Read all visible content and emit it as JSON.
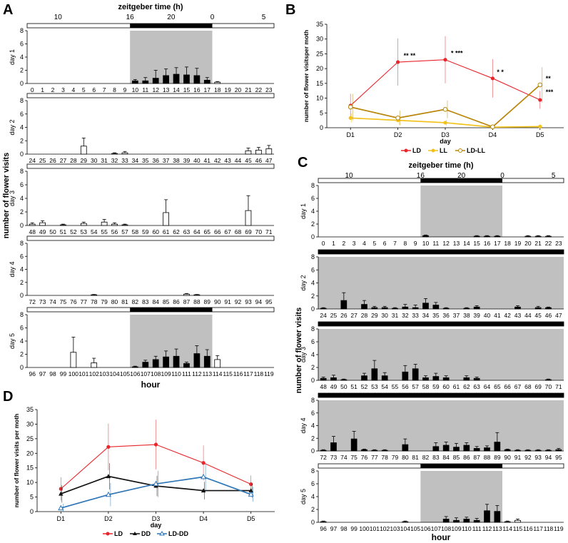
{
  "panels": {
    "A": "A",
    "B": "B",
    "C": "C",
    "D": "D"
  },
  "colors": {
    "LD": "#e8262b",
    "LL": "#f2c21b",
    "LDLL": "#b8860b",
    "DD": "#111111",
    "LDDD": "#2e75b6",
    "dark": "#c0c0c0",
    "bar": "#000000"
  },
  "chart_data": [
    {
      "panel": "A",
      "type": "bar",
      "title": "zeitgeber time (h)",
      "zeitgeber_ticks": [
        "10",
        "16",
        "20",
        "0",
        "5"
      ],
      "xlabel": "hour",
      "ylabel": "number of flower visits",
      "ylim": [
        0,
        8
      ],
      "yticks": [
        "0",
        "2",
        "4",
        "6",
        "8"
      ],
      "days": [
        {
          "label": "day 1",
          "hours": [
            "0",
            "1",
            "2",
            "3",
            "4",
            "5",
            "6",
            "7",
            "8",
            "9",
            "10",
            "11",
            "12",
            "13",
            "14",
            "15",
            "16",
            "17",
            "18",
            "19",
            "20",
            "21",
            "22",
            "23"
          ],
          "values": [
            0,
            0,
            0,
            0,
            0,
            0,
            0,
            0,
            0,
            0,
            0.4,
            0.4,
            0.8,
            1.2,
            1.4,
            1.3,
            1.2,
            0.5,
            0.2,
            0,
            0,
            0,
            0,
            0
          ],
          "errors": [
            0,
            0,
            0,
            0,
            0,
            0,
            0,
            0,
            0,
            0,
            0.2,
            0.5,
            1.2,
            1.0,
            1.0,
            1.2,
            1.1,
            0.4,
            0.1,
            0,
            0,
            0,
            0,
            0
          ],
          "dark_from": 10,
          "dark_to": 18,
          "dark_bar": "top"
        },
        {
          "label": "day 2",
          "hours": [
            "24",
            "25",
            "26",
            "27",
            "28",
            "29",
            "30",
            "31",
            "32",
            "33",
            "34",
            "35",
            "36",
            "37",
            "38",
            "39",
            "40",
            "41",
            "42",
            "43",
            "44",
            "45",
            "46",
            "47"
          ],
          "values": [
            0,
            0,
            0,
            0,
            0,
            1.2,
            0,
            0,
            0.1,
            0.2,
            0,
            0,
            0,
            0,
            0,
            0,
            0,
            0,
            0,
            0,
            0,
            0.5,
            0.6,
            0.8
          ],
          "errors": [
            0,
            0,
            0,
            0,
            0,
            1.2,
            0,
            0,
            0.1,
            0.2,
            0,
            0,
            0,
            0,
            0,
            0,
            0,
            0,
            0,
            0,
            0,
            0.4,
            0.4,
            0.5
          ],
          "dark_from": null,
          "dark_to": null,
          "dark_bar": "none"
        },
        {
          "label": "day 3",
          "hours": [
            "48",
            "49",
            "50",
            "51",
            "52",
            "53",
            "54",
            "55",
            "56",
            "57",
            "58",
            "59",
            "60",
            "61",
            "62",
            "63",
            "64",
            "65",
            "66",
            "67",
            "68",
            "69",
            "70",
            "71"
          ],
          "values": [
            0.2,
            0.4,
            0,
            0.1,
            0,
            0.3,
            0,
            0.5,
            0.2,
            0.1,
            0,
            0,
            0,
            1.9,
            0,
            0,
            0,
            0,
            0,
            0,
            0,
            2.2,
            0,
            0
          ],
          "errors": [
            0.2,
            0.3,
            0,
            0.1,
            0,
            0.2,
            0,
            0.4,
            0.2,
            0.1,
            0,
            0,
            0,
            1.9,
            0,
            0,
            0,
            0,
            0,
            0,
            0,
            2.2,
            0,
            0
          ],
          "dark_from": null,
          "dark_to": null,
          "dark_bar": "none"
        },
        {
          "label": "day 4",
          "hours": [
            "72",
            "73",
            "74",
            "75",
            "76",
            "77",
            "78",
            "79",
            "80",
            "81",
            "82",
            "83",
            "84",
            "85",
            "86",
            "87",
            "88",
            "89",
            "90",
            "91",
            "92",
            "93",
            "94",
            "95"
          ],
          "values": [
            0,
            0,
            0,
            0,
            0,
            0,
            0.1,
            0,
            0,
            0,
            0,
            0,
            0,
            0,
            0,
            0.2,
            0.1,
            0,
            0,
            0,
            0,
            0,
            0,
            0
          ],
          "errors": [
            0,
            0,
            0,
            0,
            0,
            0,
            0.05,
            0,
            0,
            0,
            0,
            0,
            0,
            0,
            0,
            0.1,
            0.05,
            0,
            0,
            0,
            0,
            0,
            0,
            0
          ],
          "dark_from": null,
          "dark_to": null,
          "dark_bar": "none"
        },
        {
          "label": "day 5",
          "hours": [
            "96",
            "97",
            "98",
            "99",
            "100",
            "101",
            "102",
            "103",
            "104",
            "105",
            "106",
            "107",
            "108",
            "109",
            "110",
            "111",
            "112",
            "113",
            "114",
            "115",
            "116",
            "117",
            "118",
            "119"
          ],
          "values": [
            0,
            0,
            0,
            0,
            2.3,
            0,
            0.7,
            0,
            0,
            0,
            0.1,
            0.8,
            1.2,
            1.6,
            1.7,
            0.6,
            2.1,
            1.7,
            1.2,
            0,
            0,
            0,
            0,
            0
          ],
          "errors": [
            0,
            0,
            0,
            0,
            2.3,
            0,
            0.7,
            0,
            0,
            0,
            0.1,
            0.3,
            0.5,
            0.9,
            1.1,
            0.2,
            1.2,
            1.0,
            0.6,
            0,
            0,
            0,
            0,
            0
          ],
          "dark_from": 10,
          "dark_to": 18,
          "dark_bar": "top"
        }
      ]
    },
    {
      "panel": "B",
      "type": "line",
      "categories": [
        "D1",
        "D2",
        "D3",
        "D4",
        "D5"
      ],
      "xlabel": "day",
      "ylabel": "number of flower visitsper moth",
      "ylim": [
        0,
        35
      ],
      "yticks": [
        "0",
        "5",
        "10",
        "15",
        "20",
        "25",
        "30",
        "35"
      ],
      "series": [
        {
          "name": "LD",
          "values": [
            7.5,
            22.2,
            23.0,
            16.7,
            9.4
          ],
          "errors": [
            4.0,
            8.0,
            8.0,
            6.5,
            3.0
          ],
          "marker": "circle"
        },
        {
          "name": "LL",
          "values": [
            3.3,
            2.5,
            1.7,
            0.2,
            0.4
          ],
          "errors": [
            1.5,
            1.5,
            1.0,
            0.3,
            0.5
          ],
          "marker": "circle"
        },
        {
          "name": "LD-LL",
          "values": [
            7.0,
            3.3,
            6.2,
            0.3,
            14.5
          ],
          "errors": [
            4.5,
            2.5,
            3.0,
            0.5,
            6.0
          ],
          "marker": "circle-open"
        }
      ],
      "annotations": [
        {
          "x": "D2",
          "y": 22.2,
          "text": "** **"
        },
        {
          "x": "D3",
          "y": 23.0,
          "text": "* ***"
        },
        {
          "x": "D4",
          "y": 16.7,
          "text": "* *"
        },
        {
          "x": "D5",
          "y": 14.5,
          "text": "**"
        },
        {
          "x": "D5",
          "y": 9.4,
          "text": "***"
        }
      ],
      "legend": [
        "LD",
        "LL",
        "LD-LL"
      ]
    },
    {
      "panel": "C",
      "type": "bar",
      "title": "zeitgeber time (h)",
      "zeitgeber_ticks": [
        "10",
        "16",
        "20",
        "0",
        "5"
      ],
      "xlabel": "hour",
      "ylabel": "number of flower visits",
      "ylim": [
        0,
        8
      ],
      "yticks": [
        "0",
        "2",
        "4",
        "6",
        "8"
      ],
      "days": [
        {
          "label": "day 1",
          "hours": [
            "0",
            "1",
            "2",
            "3",
            "4",
            "5",
            "6",
            "7",
            "8",
            "9",
            "10",
            "11",
            "12",
            "13",
            "14",
            "15",
            "16",
            "17",
            "18",
            "19",
            "20",
            "21",
            "22",
            "23"
          ],
          "values": [
            0,
            0,
            0,
            0,
            0,
            0,
            0,
            0,
            0,
            0,
            0.2,
            0,
            0,
            0,
            0,
            0.1,
            0.1,
            0.1,
            0,
            0,
            0.1,
            0.1,
            0.1,
            0
          ],
          "errors": [
            0,
            0,
            0,
            0,
            0,
            0,
            0,
            0,
            0,
            0,
            0.1,
            0,
            0,
            0,
            0,
            0.1,
            0.1,
            0.1,
            0,
            0,
            0.1,
            0.1,
            0.1,
            0
          ],
          "dark_from": 10,
          "dark_to": 18,
          "dark_bar": "top"
        },
        {
          "label": "day 2",
          "hours": [
            "24",
            "25",
            "26",
            "27",
            "28",
            "29",
            "30",
            "31",
            "32",
            "33",
            "34",
            "35",
            "36",
            "37",
            "38",
            "39",
            "40",
            "41",
            "42",
            "43",
            "44",
            "45",
            "46",
            "47"
          ],
          "values": [
            0.1,
            0,
            1.3,
            0,
            0.7,
            0.2,
            0.2,
            0.1,
            0.3,
            0.2,
            0.9,
            0.6,
            0.1,
            0,
            0.1,
            0.3,
            0,
            0,
            0,
            0.3,
            0,
            0.2,
            0.2,
            0
          ],
          "errors": [
            0.1,
            0,
            1.2,
            0,
            0.6,
            0.2,
            0.2,
            0.1,
            0.4,
            0.4,
            0.7,
            0.4,
            0.1,
            0,
            0.1,
            0.2,
            0,
            0,
            0,
            0.2,
            0,
            0.2,
            0.1,
            0
          ],
          "dark_from": 0,
          "dark_to": 24,
          "dark_bar": "full"
        },
        {
          "label": "day 3",
          "hours": [
            "48",
            "49",
            "50",
            "51",
            "52",
            "53",
            "54",
            "55",
            "56",
            "57",
            "58",
            "59",
            "60",
            "61",
            "62",
            "63",
            "64",
            "65",
            "66",
            "67",
            "68",
            "69",
            "70",
            "71"
          ],
          "values": [
            0.3,
            0.4,
            0.1,
            0,
            0.7,
            1.8,
            0.7,
            0,
            1.3,
            1.8,
            0.4,
            0.6,
            0.4,
            0,
            0.4,
            0.3,
            0,
            0,
            0,
            0,
            0,
            0,
            0.1,
            0
          ],
          "errors": [
            0.2,
            0.4,
            0.1,
            0,
            0.4,
            1.3,
            0.5,
            0,
            1.0,
            0.7,
            0.3,
            0.5,
            0.3,
            0,
            0.3,
            0.2,
            0,
            0,
            0,
            0,
            0,
            0,
            0.1,
            0
          ],
          "dark_from": 0,
          "dark_to": 24,
          "dark_bar": "full"
        },
        {
          "label": "day 4",
          "hours": [
            "72",
            "73",
            "74",
            "75",
            "76",
            "77",
            "78",
            "79",
            "80",
            "81",
            "82",
            "83",
            "84",
            "85",
            "86",
            "87",
            "88",
            "89",
            "90",
            "91",
            "92",
            "93",
            "94",
            "95"
          ],
          "values": [
            0.1,
            1.3,
            0,
            1.9,
            0.2,
            0.1,
            0.1,
            0,
            1.0,
            0,
            0,
            0.7,
            0.9,
            0.6,
            0.9,
            0.4,
            0.5,
            1.4,
            0.2,
            0.1,
            0.1,
            0.1,
            0.1,
            0.2
          ],
          "errors": [
            0.1,
            1.0,
            0,
            1.2,
            0.1,
            0.1,
            0.1,
            0,
            0.9,
            0,
            0,
            0.6,
            0.5,
            0.6,
            0.4,
            0.3,
            0.3,
            1.5,
            0.1,
            0.1,
            0.1,
            0.1,
            0.1,
            0.2
          ],
          "dark_from": 0,
          "dark_to": 24,
          "dark_bar": "full"
        },
        {
          "label": "day 5",
          "hours": [
            "96",
            "97",
            "98",
            "99",
            "100",
            "101",
            "102",
            "103",
            "104",
            "105",
            "106",
            "107",
            "108",
            "109",
            "110",
            "111",
            "112",
            "113",
            "114",
            "115",
            "116",
            "117",
            "118",
            "119"
          ],
          "values": [
            0.1,
            0,
            0,
            0,
            0,
            0,
            0,
            0,
            0.1,
            0,
            0,
            0,
            0.5,
            0.3,
            0.5,
            0.3,
            1.8,
            1.7,
            0.1,
            0.3,
            0,
            0,
            0,
            0
          ],
          "errors": [
            0.1,
            0,
            0,
            0,
            0,
            0,
            0,
            0,
            0.1,
            0,
            0,
            0,
            0.4,
            0.4,
            0.3,
            0.3,
            1.0,
            0.9,
            0.1,
            0.2,
            0,
            0,
            0,
            0
          ],
          "dark_from": 10,
          "dark_to": 18,
          "dark_bar": "top"
        }
      ]
    },
    {
      "panel": "D",
      "type": "line",
      "categories": [
        "D1",
        "D2",
        "D3",
        "D4",
        "D5"
      ],
      "xlabel": "day",
      "ylabel": "number of flower visits per moth",
      "ylim": [
        0,
        35
      ],
      "yticks": [
        "0",
        "5",
        "10",
        "15",
        "20",
        "25",
        "30",
        "35"
      ],
      "series": [
        {
          "name": "LD",
          "values": [
            7.8,
            22.2,
            23.0,
            16.7,
            9.4
          ],
          "errors": [
            4.0,
            8.0,
            8.5,
            6.0,
            3.0
          ],
          "marker": "circle"
        },
        {
          "name": "DD",
          "values": [
            6.1,
            12.1,
            8.8,
            7.2,
            7.2
          ],
          "errors": [
            3.0,
            4.5,
            3.5,
            3.0,
            2.5
          ],
          "marker": "triangle"
        },
        {
          "name": "LD-DD",
          "values": [
            1.2,
            5.8,
            9.5,
            11.9,
            5.9
          ],
          "errors": [
            1.5,
            4.0,
            4.5,
            4.5,
            2.5
          ],
          "marker": "triangle-open"
        }
      ],
      "legend": [
        "LD",
        "DD",
        "LD-DD"
      ]
    }
  ]
}
